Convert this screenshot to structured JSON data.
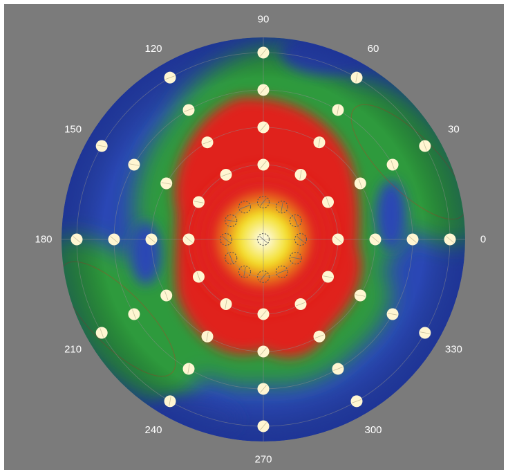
{
  "chart_data": {
    "type": "heatmap",
    "subtype": "polar-intensity-map",
    "title": "",
    "angle_unit": "degrees",
    "angle_tick_labels": [
      "0",
      "30",
      "60",
      "90",
      "120",
      "150",
      "180",
      "210",
      "240",
      "270",
      "300",
      "330"
    ],
    "angle_ticks": [
      0,
      30,
      60,
      90,
      120,
      150,
      180,
      210,
      240,
      270,
      300,
      330
    ],
    "radial_range": [
      0,
      5
    ],
    "colormap": [
      {
        "level": 0.0,
        "color": "#2a47b5"
      },
      {
        "level": 0.3,
        "color": "#2f9a3c"
      },
      {
        "level": 0.55,
        "color": "#e0231f"
      },
      {
        "level": 0.8,
        "color": "#f3df20"
      },
      {
        "level": 1.0,
        "color": "#ffffff"
      }
    ],
    "intensity_peaks": [
      {
        "name": "center",
        "angle": 0,
        "r": 0,
        "level": "max"
      },
      {
        "name": "lobe-30",
        "angle": 30,
        "r": 4.4,
        "level": "medium"
      },
      {
        "name": "lobe-210",
        "angle": 210,
        "r": 4.4,
        "level": "medium"
      }
    ],
    "measurement_points": [
      {
        "ring": 0,
        "r": 0,
        "angles": [
          0
        ],
        "style": "dashed"
      },
      {
        "ring": 1,
        "r": 1,
        "angles": [
          0,
          30,
          60,
          90,
          120,
          150,
          180,
          210,
          240,
          270,
          300,
          330
        ],
        "style": "dashed"
      },
      {
        "ring": 2,
        "r": 2,
        "angles": [
          0,
          30,
          60,
          90,
          120,
          150,
          180,
          210,
          240,
          270,
          300,
          330
        ],
        "style": "solid"
      },
      {
        "ring": 3,
        "r": 3,
        "angles": [
          0,
          30,
          60,
          90,
          120,
          150,
          180,
          210,
          240,
          270,
          300,
          330
        ],
        "style": "solid"
      },
      {
        "ring": 4,
        "r": 4,
        "angles": [
          0,
          30,
          60,
          90,
          120,
          150,
          180,
          210,
          240,
          270,
          300,
          330
        ],
        "style": "solid"
      },
      {
        "ring": 5,
        "r": 5,
        "angles": [
          0,
          30,
          60,
          90,
          120,
          150,
          180,
          210,
          240,
          270,
          300,
          330
        ],
        "style": "solid"
      }
    ],
    "grid": true,
    "legend": "none"
  }
}
